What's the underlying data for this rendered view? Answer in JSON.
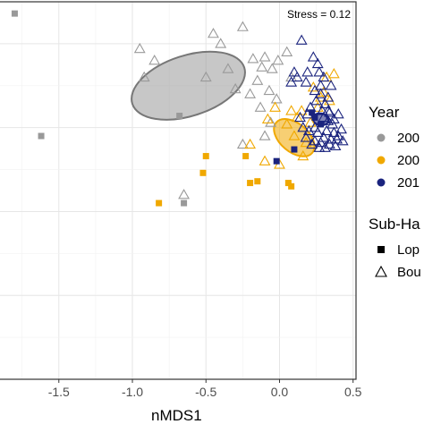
{
  "chart_data": {
    "type": "scatter",
    "xlabel": "nMDS1",
    "ylabel": "",
    "xlim": [
      -1.9,
      0.52
    ],
    "ylim": [
      -1.5,
      0.75
    ],
    "x_ticks": [
      -1.5,
      -1.0,
      -0.5,
      0.0,
      0.5
    ],
    "x_tick_labels": [
      "-1.5",
      "-1.0",
      "-0.5",
      "0.0",
      "0.5"
    ],
    "annotation": "Stress = 0.12",
    "grid": true,
    "legend_position": "right",
    "legends": [
      {
        "title": "Year",
        "items": [
          {
            "label": "200",
            "color": "#999999",
            "marker": "circle"
          },
          {
            "label": "200",
            "color": "#f0a800",
            "marker": "circle"
          },
          {
            "label": "201",
            "color": "#1a237e",
            "marker": "circle"
          }
        ]
      },
      {
        "title": "Sub-Ha",
        "items": [
          {
            "label": "Lop",
            "color": "#000000",
            "marker": "square"
          },
          {
            "label": "Bou",
            "color": "#000000",
            "marker": "triangle-open"
          }
        ]
      }
    ],
    "series": [
      {
        "name": "200",
        "color": "#999999",
        "squares": [
          [
            -1.8,
            0.68
          ],
          [
            -1.62,
            -0.05
          ],
          [
            -0.65,
            -0.45
          ],
          [
            -0.68,
            0.07
          ]
        ],
        "triangles": [
          [
            -0.92,
            0.3
          ],
          [
            -0.85,
            0.4
          ],
          [
            -0.95,
            0.47
          ],
          [
            -0.45,
            0.56
          ],
          [
            -0.4,
            0.5
          ],
          [
            -0.25,
            0.6
          ],
          [
            -0.5,
            0.3
          ],
          [
            -0.35,
            0.35
          ],
          [
            -0.3,
            0.23
          ],
          [
            -0.15,
            0.28
          ],
          [
            -0.1,
            0.42
          ],
          [
            -0.05,
            0.35
          ],
          [
            -0.02,
            0.17
          ],
          [
            -0.13,
            0.12
          ],
          [
            -0.07,
            0.22
          ],
          [
            -0.18,
            0.41
          ],
          [
            -0.12,
            0.36
          ],
          [
            -0.2,
            0.2
          ],
          [
            -0.06,
            0.03
          ],
          [
            -0.1,
            -0.05
          ],
          [
            -0.25,
            -0.1
          ],
          [
            -0.65,
            -0.4
          ],
          [
            0.05,
            0.45
          ],
          [
            -0.01,
            0.4
          ],
          [
            0.08,
            0.3
          ]
        ],
        "ellipse": {
          "cx": -0.62,
          "cy": 0.25,
          "rx": 0.4,
          "ry": 0.18,
          "angle": 18
        }
      },
      {
        "name": "200",
        "color": "#f0a800",
        "squares": [
          [
            -0.5,
            -0.17
          ],
          [
            -0.82,
            -0.45
          ],
          [
            -0.23,
            -0.17
          ],
          [
            -0.52,
            -0.27
          ],
          [
            -0.2,
            -0.33
          ],
          [
            -0.15,
            -0.32
          ],
          [
            0.06,
            -0.33
          ],
          [
            0.08,
            -0.35
          ]
        ],
        "triangles": [
          [
            0.12,
            0.06
          ],
          [
            0.15,
            0.1
          ],
          [
            0.26,
            0.12
          ],
          [
            0.28,
            0.18
          ],
          [
            0.3,
            0.21
          ],
          [
            0.23,
            0.24
          ],
          [
            0.34,
            0.16
          ],
          [
            0.05,
            0.02
          ],
          [
            0.1,
            -0.05
          ],
          [
            -0.1,
            -0.2
          ],
          [
            0.0,
            -0.22
          ],
          [
            0.16,
            -0.17
          ],
          [
            -0.2,
            -0.1
          ],
          [
            0.21,
            0.03
          ],
          [
            0.32,
            0.3
          ],
          [
            0.37,
            0.32
          ],
          [
            -0.03,
            0.12
          ],
          [
            0.08,
            0.1
          ],
          [
            0.18,
            -0.09
          ],
          [
            -0.08,
            0.05
          ]
        ],
        "ellipse": {
          "cx": 0.1,
          "cy": -0.06,
          "rx": 0.16,
          "ry": 0.085,
          "angle": -40
        }
      },
      {
        "name": "201",
        "color": "#1a237e",
        "squares": [
          [
            -0.02,
            -0.2
          ],
          [
            0.1,
            -0.13
          ],
          [
            0.24,
            0.06
          ],
          [
            0.28,
            0.02
          ],
          [
            0.22,
            0.09
          ]
        ],
        "triangles": [
          [
            0.15,
            0.52
          ],
          [
            0.23,
            0.42
          ],
          [
            0.26,
            0.38
          ],
          [
            0.27,
            0.33
          ],
          [
            0.3,
            0.3
          ],
          [
            0.19,
            0.33
          ],
          [
            0.12,
            0.3
          ],
          [
            0.18,
            0.27
          ],
          [
            0.24,
            0.22
          ],
          [
            0.28,
            0.2
          ],
          [
            0.33,
            0.18
          ],
          [
            0.25,
            0.16
          ],
          [
            0.31,
            0.14
          ],
          [
            0.29,
            0.1
          ],
          [
            0.34,
            0.09
          ],
          [
            0.3,
            0.06
          ],
          [
            0.33,
            0.04
          ],
          [
            0.36,
            0.02
          ],
          [
            0.32,
            -0.02
          ],
          [
            0.37,
            -0.03
          ],
          [
            0.4,
            -0.05
          ],
          [
            0.35,
            -0.07
          ],
          [
            0.3,
            -0.06
          ],
          [
            0.28,
            -0.09
          ],
          [
            0.24,
            -0.08
          ],
          [
            0.2,
            -0.02
          ],
          [
            0.26,
            -0.03
          ],
          [
            0.38,
            -0.11
          ],
          [
            0.34,
            -0.1
          ],
          [
            0.22,
            -0.1
          ],
          [
            0.18,
            -0.06
          ],
          [
            0.16,
            0.0
          ],
          [
            0.33,
            0.1
          ],
          [
            0.37,
            0.05
          ],
          [
            0.4,
            0.08
          ],
          [
            0.42,
            -0.01
          ],
          [
            0.1,
            0.33
          ],
          [
            0.08,
            0.27
          ],
          [
            0.35,
            0.25
          ],
          [
            0.28,
            0.25
          ],
          [
            0.14,
            0.06
          ],
          [
            0.21,
            0.12
          ],
          [
            0.43,
            -0.08
          ],
          [
            0.39,
            -0.07
          ],
          [
            0.31,
            -0.12
          ],
          [
            0.27,
            -0.12
          ],
          [
            0.19,
            0.08
          ],
          [
            0.24,
            0.0
          ]
        ],
        "ellipse": {
          "cx": 0.28,
          "cy": 0.05,
          "rx": 0.055,
          "ry": 0.035,
          "angle": -10
        }
      }
    ]
  }
}
